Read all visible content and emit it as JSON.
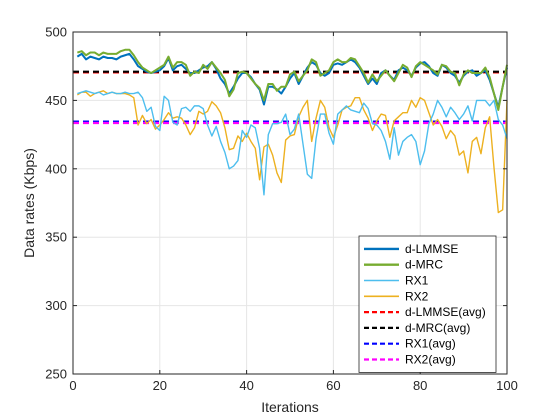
{
  "chart_data": {
    "type": "line",
    "xlabel": "Iterations",
    "ylabel": "Data rates (Kbps)",
    "xlim": [
      0,
      100
    ],
    "ylim": [
      250,
      500
    ],
    "xticks": [
      0,
      20,
      40,
      60,
      80,
      100
    ],
    "yticks": [
      250,
      300,
      350,
      400,
      450,
      500
    ],
    "xtick_labels": [
      "0",
      "20",
      "40",
      "60",
      "80",
      "100"
    ],
    "ytick_labels": [
      "250",
      "300",
      "350",
      "400",
      "450",
      "500"
    ],
    "grid": true,
    "legend_position": "bottom-right",
    "series": [
      {
        "name": "d-LMMSE",
        "color": "#0072BD",
        "style": "solid",
        "x": [
          1,
          2,
          3,
          4,
          5,
          6,
          7,
          8,
          9,
          10,
          11,
          12,
          13,
          14,
          15,
          16,
          17,
          18,
          19,
          20,
          21,
          22,
          23,
          24,
          25,
          26,
          27,
          28,
          29,
          30,
          31,
          32,
          33,
          34,
          35,
          36,
          37,
          38,
          39,
          40,
          41,
          42,
          43,
          44,
          45,
          46,
          47,
          48,
          49,
          50,
          51,
          52,
          53,
          54,
          55,
          56,
          57,
          58,
          59,
          60,
          61,
          62,
          63,
          64,
          65,
          66,
          67,
          68,
          69,
          70,
          71,
          72,
          73,
          74,
          75,
          76,
          77,
          78,
          79,
          80,
          81,
          82,
          83,
          84,
          85,
          86,
          87,
          88,
          89,
          90,
          91,
          92,
          93,
          94,
          95,
          96,
          97,
          98,
          99,
          100
        ],
        "y": [
          482,
          484,
          480,
          482,
          481,
          480,
          482,
          481,
          481,
          480,
          482,
          483,
          484,
          480,
          475,
          473,
          471,
          470,
          471,
          472,
          475,
          481,
          472,
          475,
          476,
          473,
          470,
          470,
          472,
          474,
          475,
          478,
          473,
          466,
          462,
          455,
          460,
          466,
          470,
          470,
          467,
          462,
          458,
          447,
          460,
          460,
          458,
          455,
          460,
          466,
          470,
          462,
          468,
          474,
          478,
          476,
          470,
          468,
          470,
          476,
          477,
          476,
          478,
          480,
          478,
          474,
          468,
          462,
          466,
          462,
          470,
          472,
          468,
          465,
          472,
          474,
          472,
          468,
          474,
          477,
          478,
          475,
          470,
          468,
          476,
          474,
          470,
          468,
          463,
          468,
          471,
          472,
          468,
          470,
          472,
          465,
          455,
          445,
          460,
          474
        ]
      },
      {
        "name": "d-MRC",
        "color": "#77AC30",
        "style": "solid",
        "x": [
          1,
          2,
          3,
          4,
          5,
          6,
          7,
          8,
          9,
          10,
          11,
          12,
          13,
          14,
          15,
          16,
          17,
          18,
          19,
          20,
          21,
          22,
          23,
          24,
          25,
          26,
          27,
          28,
          29,
          30,
          31,
          32,
          33,
          34,
          35,
          36,
          37,
          38,
          39,
          40,
          41,
          42,
          43,
          44,
          45,
          46,
          47,
          48,
          49,
          50,
          51,
          52,
          53,
          54,
          55,
          56,
          57,
          58,
          59,
          60,
          61,
          62,
          63,
          64,
          65,
          66,
          67,
          68,
          69,
          70,
          71,
          72,
          73,
          74,
          75,
          76,
          77,
          78,
          79,
          80,
          81,
          82,
          83,
          84,
          85,
          86,
          87,
          88,
          89,
          90,
          91,
          92,
          93,
          94,
          95,
          96,
          97,
          98,
          99,
          100
        ],
        "y": [
          485,
          486,
          483,
          485,
          485,
          483,
          485,
          484,
          484,
          484,
          486,
          487,
          487,
          483,
          478,
          474,
          472,
          470,
          472,
          474,
          476,
          482,
          474,
          478,
          478,
          476,
          468,
          471,
          470,
          476,
          473,
          478,
          474,
          470,
          465,
          453,
          458,
          470,
          471,
          470,
          466,
          462,
          459,
          450,
          462,
          462,
          457,
          460,
          460,
          469,
          471,
          464,
          468,
          472,
          480,
          478,
          468,
          470,
          472,
          478,
          480,
          478,
          478,
          481,
          480,
          475,
          470,
          463,
          469,
          464,
          468,
          472,
          468,
          464,
          470,
          476,
          474,
          467,
          475,
          478,
          476,
          474,
          472,
          469,
          476,
          475,
          471,
          470,
          461,
          469,
          472,
          470,
          470,
          470,
          474,
          467,
          455,
          443,
          460,
          476
        ]
      },
      {
        "name": "RX1",
        "color": "#4DBEEE",
        "style": "solid",
        "x": [
          1,
          2,
          3,
          4,
          5,
          6,
          7,
          8,
          9,
          10,
          11,
          12,
          13,
          14,
          15,
          16,
          17,
          18,
          19,
          20,
          21,
          22,
          23,
          24,
          25,
          26,
          27,
          28,
          29,
          30,
          31,
          32,
          33,
          34,
          35,
          36,
          37,
          38,
          39,
          40,
          41,
          42,
          43,
          44,
          45,
          46,
          47,
          48,
          49,
          50,
          51,
          52,
          53,
          54,
          55,
          56,
          57,
          58,
          59,
          60,
          61,
          62,
          63,
          64,
          65,
          66,
          67,
          68,
          69,
          70,
          71,
          72,
          73,
          74,
          75,
          76,
          77,
          78,
          79,
          80,
          81,
          82,
          83,
          84,
          85,
          86,
          87,
          88,
          89,
          90,
          91,
          92,
          93,
          94,
          95,
          96,
          97,
          98,
          99,
          100
        ],
        "y": [
          455,
          456,
          457,
          456,
          455,
          456,
          454,
          455,
          456,
          455,
          455,
          456,
          455,
          455,
          456,
          452,
          442,
          445,
          431,
          428,
          453,
          450,
          434,
          432,
          444,
          445,
          442,
          446,
          446,
          444,
          432,
          424,
          431,
          420,
          412,
          400,
          402,
          406,
          428,
          423,
          432,
          430,
          415,
          381,
          425,
          433,
          433,
          434,
          440,
          425,
          429,
          440,
          418,
          396,
          393,
          422,
          440,
          440,
          426,
          418,
          440,
          443,
          446,
          443,
          442,
          441,
          448,
          444,
          433,
          432,
          428,
          420,
          407,
          430,
          410,
          420,
          423,
          425,
          420,
          403,
          413,
          433,
          440,
          450,
          445,
          438,
          445,
          441,
          436,
          440,
          446,
          435,
          450,
          450,
          450,
          446,
          450,
          436,
          432,
          422
        ]
      },
      {
        "name": "RX2",
        "color": "#EDB120",
        "style": "solid",
        "x": [
          1,
          2,
          3,
          4,
          5,
          6,
          7,
          8,
          9,
          10,
          11,
          12,
          13,
          14,
          15,
          16,
          17,
          18,
          19,
          20,
          21,
          22,
          23,
          24,
          25,
          26,
          27,
          28,
          29,
          30,
          31,
          32,
          33,
          34,
          35,
          36,
          37,
          38,
          39,
          40,
          41,
          42,
          43,
          44,
          45,
          46,
          47,
          48,
          49,
          50,
          51,
          52,
          53,
          54,
          55,
          56,
          57,
          58,
          59,
          60,
          61,
          62,
          63,
          64,
          65,
          66,
          67,
          68,
          69,
          70,
          71,
          72,
          73,
          74,
          75,
          76,
          77,
          78,
          79,
          80,
          81,
          82,
          83,
          84,
          85,
          86,
          87,
          88,
          89,
          90,
          91,
          92,
          93,
          94,
          95,
          96,
          97,
          98,
          99,
          100
        ],
        "y": [
          454,
          456,
          456,
          453,
          455,
          456,
          457,
          455,
          456,
          455,
          455,
          455,
          454,
          452,
          432,
          439,
          433,
          436,
          429,
          432,
          436,
          441,
          437,
          438,
          437,
          432,
          425,
          430,
          442,
          440,
          442,
          449,
          446,
          441,
          430,
          414,
          415,
          424,
          420,
          426,
          420,
          415,
          392,
          416,
          418,
          410,
          397,
          390,
          421,
          424,
          425,
          438,
          445,
          450,
          420,
          437,
          450,
          445,
          430,
          423,
          432,
          443,
          445,
          446,
          452,
          452,
          443,
          437,
          428,
          435,
          440,
          439,
          423,
          435,
          438,
          441,
          441,
          450,
          445,
          452,
          450,
          441,
          432,
          436,
          431,
          422,
          428,
          424,
          410,
          413,
          397,
          420,
          423,
          411,
          430,
          438,
          401,
          368,
          370,
          450
        ]
      },
      {
        "name": "d-LMMSE(avg)",
        "color": "#FF0000",
        "style": "dashed",
        "x": [
          0,
          100
        ],
        "y": [
          470.5,
          470.5
        ]
      },
      {
        "name": "d-MRC(avg)",
        "color": "#000000",
        "style": "dashed",
        "x": [
          0,
          100
        ],
        "y": [
          471,
          471
        ]
      },
      {
        "name": "RX1(avg)",
        "color": "#0000FF",
        "style": "dashed",
        "x": [
          0,
          100
        ],
        "y": [
          434.5,
          434.5
        ]
      },
      {
        "name": "RX2(avg)",
        "color": "#FF00FF",
        "style": "dashed",
        "x": [
          0,
          100
        ],
        "y": [
          433.5,
          433.5
        ]
      }
    ]
  }
}
